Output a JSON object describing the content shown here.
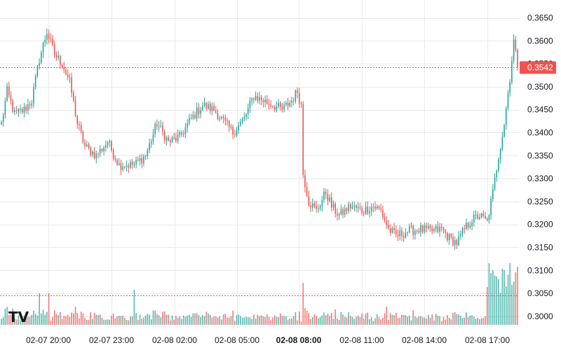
{
  "chart_data": {
    "type": "candlestick",
    "title": "",
    "xlabel": "",
    "ylabel": "",
    "ylim": [
      0.2985,
      0.3662
    ],
    "y_ticks": [
      "0.3650",
      "0.3600",
      "0.3550",
      "0.3500",
      "0.3450",
      "0.3400",
      "0.3350",
      "0.3300",
      "0.3250",
      "0.3200",
      "0.3150",
      "0.3100",
      "0.3050",
      "0.3000"
    ],
    "y_tick_values": [
      0.365,
      0.36,
      0.355,
      0.35,
      0.345,
      0.34,
      0.335,
      0.33,
      0.325,
      0.32,
      0.315,
      0.31,
      0.305,
      0.3
    ],
    "x_ticks": [
      {
        "label": "02-07 20:00",
        "bold": false
      },
      {
        "label": "02-07 23:00",
        "bold": false
      },
      {
        "label": "02-08 02:00",
        "bold": false
      },
      {
        "label": "02-08 05:00",
        "bold": false
      },
      {
        "label": "02-08 08:00",
        "bold": true
      },
      {
        "label": "02-08 11:00",
        "bold": false
      },
      {
        "label": "02-08 14:00",
        "bold": false
      },
      {
        "label": "02-08 17:00",
        "bold": false
      }
    ],
    "last_price": "0.3542",
    "last_price_value": 0.3542,
    "volume_ref_value": 0.3046,
    "grid": true,
    "colors": {
      "up": "#26a69a",
      "down": "#ef5350",
      "grid": "#e8e9ec",
      "text": "#131722",
      "price_line": "#ef5350"
    },
    "logo": "TV",
    "price_key_points": [
      [
        0,
        0.342
      ],
      [
        3,
        0.349
      ],
      [
        7,
        0.344
      ],
      [
        12,
        0.345
      ],
      [
        16,
        0.347
      ],
      [
        20,
        0.356
      ],
      [
        24,
        0.362
      ],
      [
        28,
        0.357
      ],
      [
        32,
        0.355
      ],
      [
        36,
        0.351
      ],
      [
        40,
        0.342
      ],
      [
        44,
        0.337
      ],
      [
        50,
        0.335
      ],
      [
        56,
        0.338
      ],
      [
        62,
        0.333
      ],
      [
        70,
        0.333
      ],
      [
        76,
        0.335
      ],
      [
        82,
        0.342
      ],
      [
        88,
        0.338
      ],
      [
        94,
        0.339
      ],
      [
        100,
        0.343
      ],
      [
        106,
        0.346
      ],
      [
        112,
        0.345
      ],
      [
        118,
        0.342
      ],
      [
        122,
        0.34
      ],
      [
        128,
        0.343
      ],
      [
        133,
        0.348
      ],
      [
        138,
        0.347
      ],
      [
        143,
        0.346
      ],
      [
        148,
        0.345
      ],
      [
        153,
        0.347
      ],
      [
        156,
        0.349
      ],
      [
        158,
        0.346
      ],
      [
        159,
        0.331
      ],
      [
        162,
        0.325
      ],
      [
        166,
        0.323
      ],
      [
        171,
        0.327
      ],
      [
        174,
        0.324
      ],
      [
        178,
        0.322
      ],
      [
        184,
        0.324
      ],
      [
        190,
        0.323
      ],
      [
        196,
        0.324
      ],
      [
        200,
        0.323
      ],
      [
        204,
        0.319
      ],
      [
        208,
        0.3175
      ],
      [
        214,
        0.3185
      ],
      [
        220,
        0.319
      ],
      [
        226,
        0.3185
      ],
      [
        232,
        0.319
      ],
      [
        236,
        0.317
      ],
      [
        240,
        0.316
      ],
      [
        244,
        0.319
      ],
      [
        248,
        0.321
      ],
      [
        252,
        0.322
      ],
      [
        256,
        0.3205
      ],
      [
        259,
        0.327
      ],
      [
        262,
        0.335
      ],
      [
        265,
        0.342
      ],
      [
        268,
        0.352
      ],
      [
        270,
        0.36
      ],
      [
        272,
        0.3542
      ]
    ]
  }
}
